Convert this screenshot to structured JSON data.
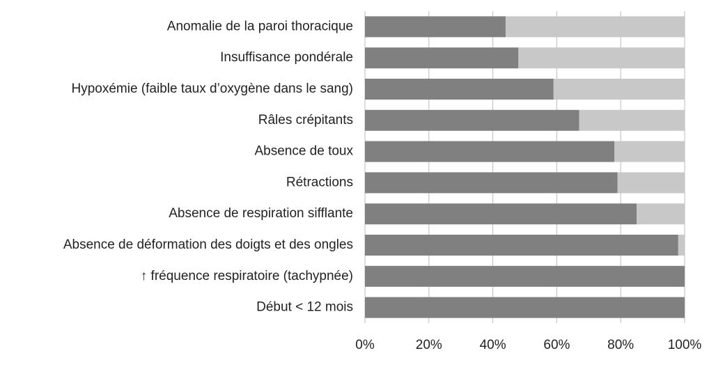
{
  "chart_data": {
    "type": "stacked-barh",
    "categories": [
      "Anomalie de la paroi thoracique",
      "Insuffisance pondérale",
      "Hypoxémie (faible taux d’oxygène dans le sang)",
      "Râles crépitants",
      "Absence de toux",
      "Rétractions",
      "Absence de respiration sifflante",
      "Absence de déformation des doigts et des ongles",
      "↑ fréquence respiratoire (tachypnée)",
      "Début < 12 mois"
    ],
    "series": [
      {
        "color": "#808080",
        "values": [
          44,
          48,
          59,
          67,
          78,
          79,
          85,
          98,
          100,
          100
        ]
      },
      {
        "color": "#c8c8c8",
        "values": [
          56,
          52,
          41,
          33,
          22,
          21,
          15,
          2,
          0,
          0
        ]
      }
    ],
    "xlim": [
      0,
      100
    ],
    "xticks": [
      {
        "value": 0,
        "label": "0%"
      },
      {
        "value": 20,
        "label": "20%"
      },
      {
        "value": 40,
        "label": "40%"
      },
      {
        "value": 60,
        "label": "60%"
      },
      {
        "value": 80,
        "label": "80%"
      },
      {
        "value": 100,
        "label": "100%"
      }
    ],
    "grid": true
  }
}
